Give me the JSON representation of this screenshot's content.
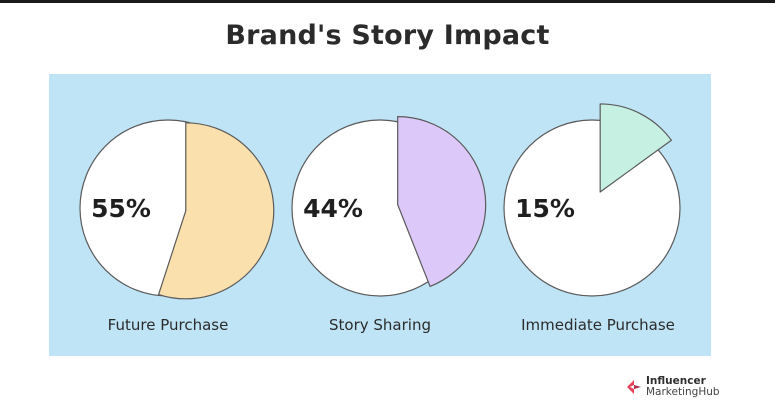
{
  "title": "Brand's Story Impact",
  "chart_data": {
    "type": "pie",
    "title": "Brand's Story Impact",
    "charts": [
      {
        "label": "Future Purchase",
        "value_label": "55%",
        "value": 55,
        "color": "#f9e0ad"
      },
      {
        "label": "Story Sharing",
        "value_label": "44%",
        "value": 44,
        "color": "#dcc9f9"
      },
      {
        "label": "Immediate Purchase",
        "value_label": "15%",
        "value": 15,
        "color": "#c6f0e2"
      }
    ]
  },
  "brand": {
    "line1": "Influencer",
    "line2": "MarketingHub",
    "icon": "influencer-marketing-hub-logo"
  }
}
